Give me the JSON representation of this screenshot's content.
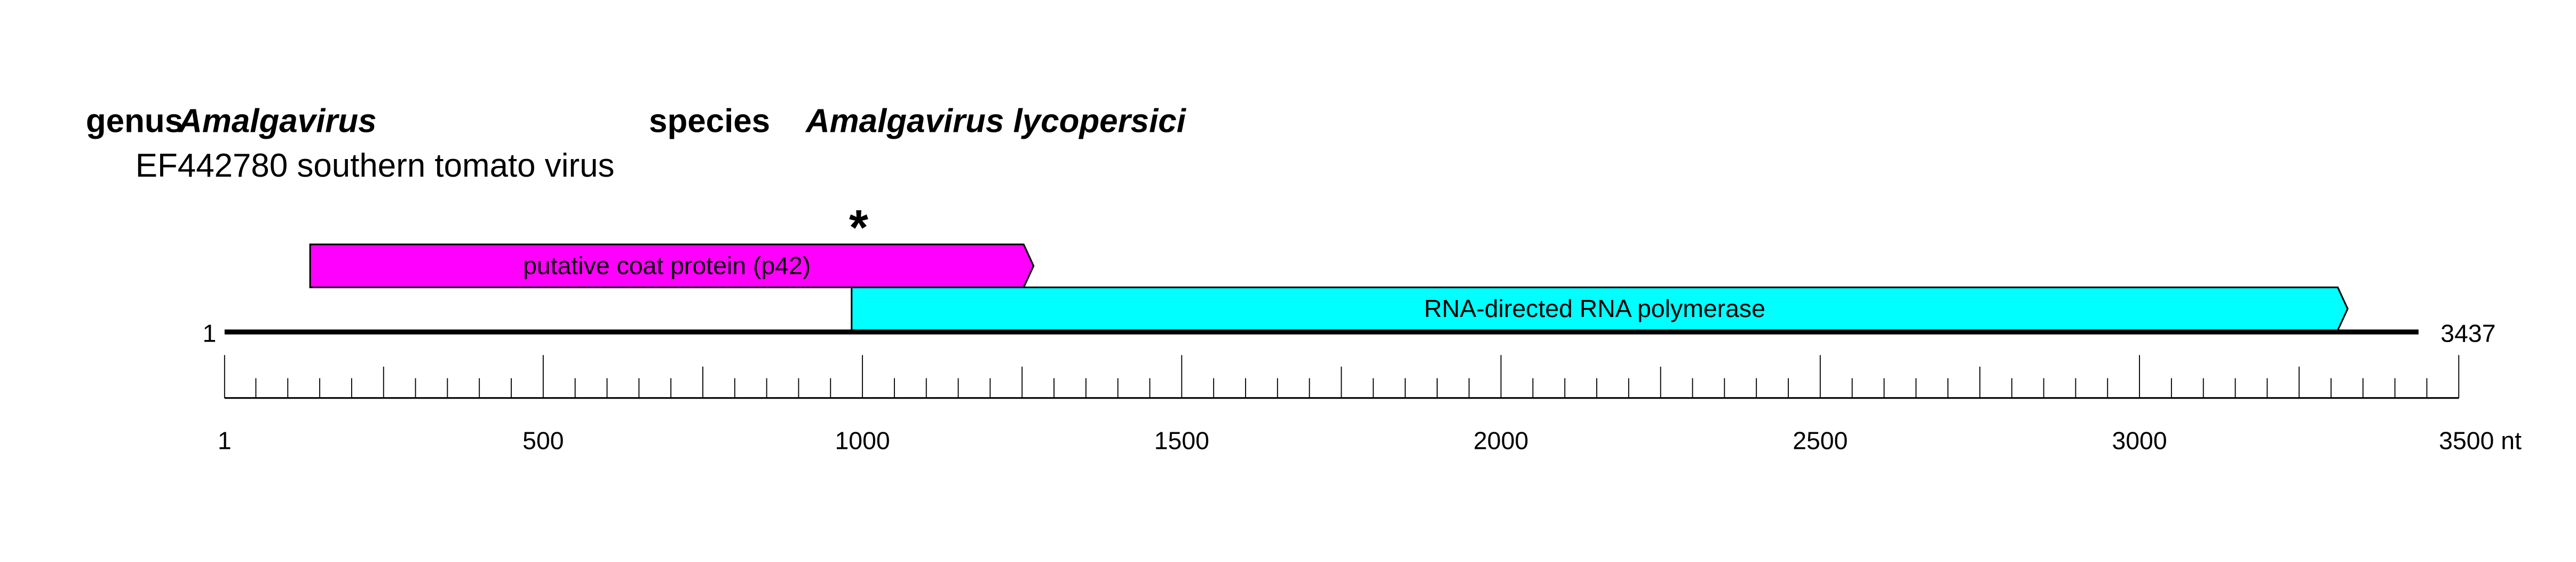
{
  "header": {
    "genus_label": "genus",
    "genus_name": "Amalgavirus",
    "species_label": "species",
    "species_name": "Amalgavirus lycopersici",
    "accession_line": "EF442780 southern tomato virus"
  },
  "genome": {
    "start_label": "1",
    "end_label": "3437",
    "length": 3437
  },
  "features": [
    {
      "name": "putative coat protein (p42)",
      "start": 135,
      "end": 1268,
      "color": "#ff00ff",
      "row": "upper"
    },
    {
      "name": "RNA-directed RNA polymerase",
      "start": 983,
      "end": 3326,
      "color": "#00ffff",
      "row": "lower"
    }
  ],
  "marker": {
    "symbol": "*",
    "position": 994
  },
  "scale": {
    "min": 1,
    "max": 3500,
    "minor_step": 50,
    "medium_step": 250,
    "major_step": 500,
    "tick_labels": [
      "1",
      "500",
      "1000",
      "1500",
      "2000",
      "2500",
      "3000",
      "3500 nt"
    ]
  }
}
